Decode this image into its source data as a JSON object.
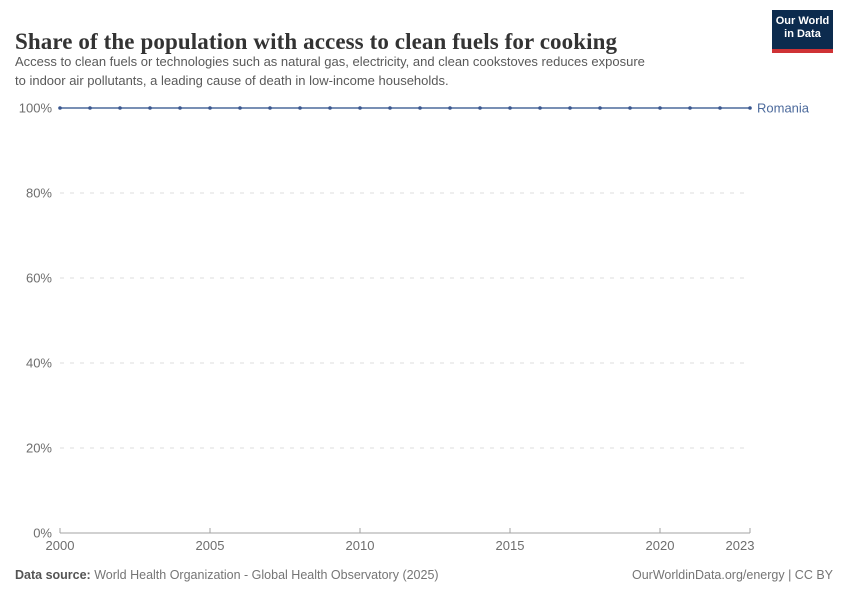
{
  "header": {
    "title": "Share of the population with access to clean fuels for cooking",
    "subtitle_lines": [
      "Access to clean fuels or technologies such as natural gas, electricity, and clean cookstoves reduces exposure",
      "to indoor air pollutants, a leading cause of death in low-income households."
    ],
    "logo": {
      "line1": "Our World",
      "line2": "in Data",
      "bg_color": "#0c2b4e",
      "stripe_color": "#cf3235"
    }
  },
  "chart_data": {
    "type": "line",
    "title": "Share of the population with access to clean fuels for cooking",
    "x": [
      2000,
      2001,
      2002,
      2003,
      2004,
      2005,
      2006,
      2007,
      2008,
      2009,
      2010,
      2011,
      2012,
      2013,
      2014,
      2015,
      2016,
      2017,
      2018,
      2019,
      2020,
      2021,
      2022,
      2023
    ],
    "series": [
      {
        "name": "Romania",
        "color": "#4c6a9c",
        "marker_color": "#39568f",
        "values": [
          100,
          100,
          100,
          100,
          100,
          100,
          100,
          100,
          100,
          100,
          100,
          100,
          100,
          100,
          100,
          100,
          100,
          100,
          100,
          100,
          100,
          100,
          100,
          100
        ]
      }
    ],
    "x_ticks": [
      2000,
      2005,
      2010,
      2015,
      2020,
      2023
    ],
    "y_ticks": [
      0,
      20,
      40,
      60,
      80,
      100
    ],
    "xlim": [
      2000,
      2023
    ],
    "ylim": [
      0,
      100
    ],
    "y_tick_suffix": "%",
    "grid": true,
    "legend_position": "right-of-line-end",
    "gridline_color": "#dcdcdc",
    "axis_color": "#a3a3a3",
    "tick_label_color": "#6e6e6e"
  },
  "footer": {
    "source_label": "Data source:",
    "source_text": " World Health Organization - Global Health Observatory (2025)",
    "credit": "OurWorldinData.org/energy | CC BY"
  }
}
